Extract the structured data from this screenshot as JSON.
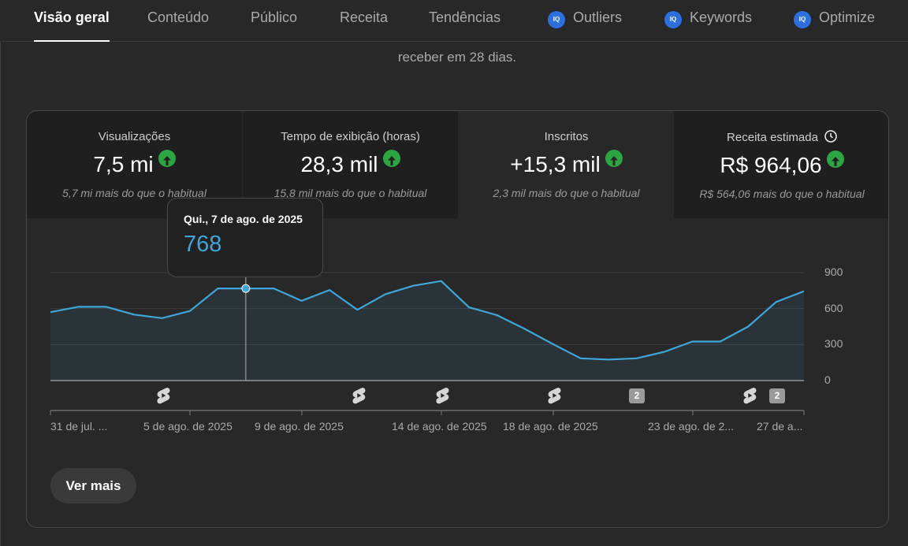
{
  "tabs": [
    {
      "label": "Visão geral",
      "active": true
    },
    {
      "label": "Conteúdo"
    },
    {
      "label": "Público"
    },
    {
      "label": "Receita"
    },
    {
      "label": "Tendências"
    },
    {
      "label": "Outliers",
      "icon": "iq-badge-icon"
    },
    {
      "label": "Keywords",
      "icon": "iq-badge-icon"
    },
    {
      "label": "Optimize",
      "icon": "iq-badge-icon"
    }
  ],
  "iq_badge_text": "IQ",
  "intro_text": "receber em 28 dias.",
  "metrics": [
    {
      "label": "Visualizações",
      "value": "7,5 mi",
      "trend": "up",
      "sub": "5,7 mi mais do que o habitual"
    },
    {
      "label": "Tempo de exibição (horas)",
      "value": "28,3 mil",
      "trend": "up",
      "sub": "15,8 mil mais do que o habitual"
    },
    {
      "label": "Inscritos",
      "value": "+15,3 mil",
      "trend": "up",
      "sub": "2,3 mil mais do que o habitual"
    },
    {
      "label": "Receita estimada",
      "value": "R$ 964,06",
      "trend": "up",
      "sub": "R$ 564,06 mais do que o habitual",
      "icon": "clock-icon"
    }
  ],
  "tooltip": {
    "date": "Qui., 7 de ago. de 2025",
    "value": "768"
  },
  "chart_data": {
    "type": "area",
    "series": [
      {
        "values": [
          570,
          615,
          615,
          550,
          520,
          580,
          768,
          768,
          768,
          665,
          755,
          590,
          720,
          790,
          830,
          610,
          545,
          430,
          305,
          185,
          175,
          185,
          240,
          325,
          325,
          450,
          655,
          745
        ]
      }
    ],
    "y_ticks": [
      0,
      300,
      600,
      900
    ],
    "ylim": [
      0,
      900
    ],
    "x_tick_labels": [
      "31 de jul. ...",
      "5 de ago. de 2025",
      "9 de ago. de 2025",
      "14 de ago. de 2025",
      "18 de ago. de 2025",
      "23 de ago. de 2...",
      "27 de a..."
    ],
    "highlight_index": 7,
    "line_color": "#3ea6d8",
    "grid": true
  },
  "markers": [
    {
      "type": "shorts-icon"
    },
    {
      "type": "shorts-icon"
    },
    {
      "type": "shorts-icon"
    },
    {
      "type": "shorts-icon"
    },
    {
      "type": "count-badge",
      "text": "2"
    },
    {
      "type": "shorts-icon"
    },
    {
      "type": "count-badge",
      "text": "2"
    }
  ],
  "more_button": "Ver mais",
  "colors": {
    "background": "#282828",
    "accent": "#3ea6d8",
    "trend_up": "#2ba640",
    "iq_badge": "#2b6fe0"
  }
}
